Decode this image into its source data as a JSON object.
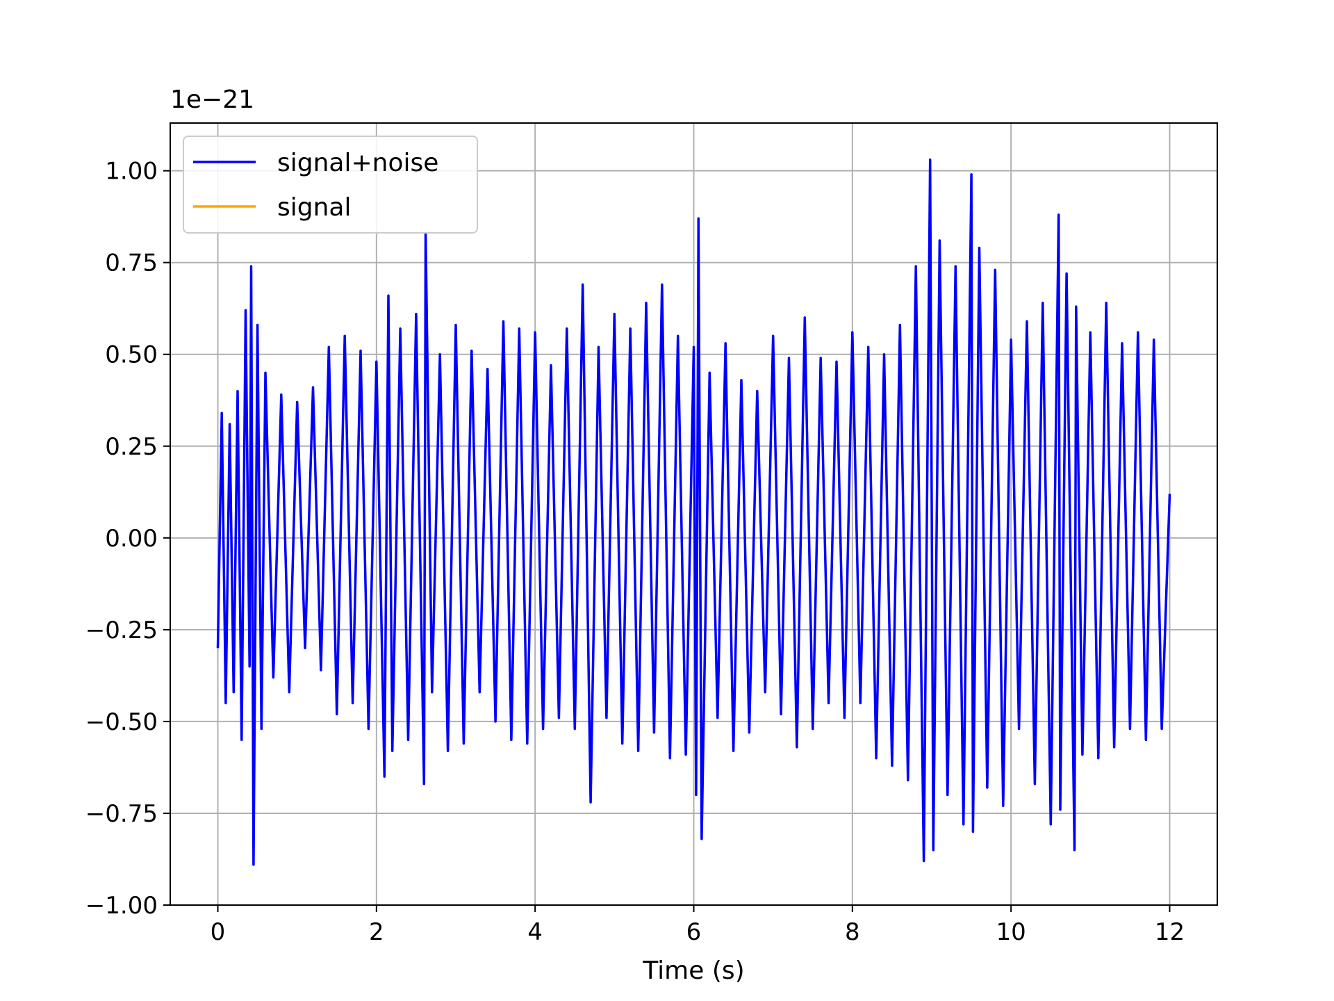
{
  "chart_data": {
    "type": "line",
    "title": "",
    "xlabel": "Time (s)",
    "ylabel": "",
    "y_offset_label": "1e−21",
    "xlim": [
      -0.6,
      12.6
    ],
    "ylim": [
      -1.0,
      1.13
    ],
    "x_ticks": [
      0,
      2,
      4,
      6,
      8,
      10,
      12
    ],
    "x_tick_labels": [
      "0",
      "2",
      "4",
      "6",
      "8",
      "10",
      "12"
    ],
    "y_ticks": [
      1.0,
      0.75,
      0.5,
      0.25,
      0.0,
      -0.25,
      -0.5,
      -0.75,
      -1.0
    ],
    "y_tick_labels": [
      "1.00",
      "0.75",
      "0.50",
      "0.25",
      "0.00",
      "−0.25",
      "−0.50",
      "−0.75",
      "−1.00"
    ],
    "grid": true,
    "legend_position": "upper-left",
    "series": [
      {
        "name": "signal+noise",
        "color": "#0000ff",
        "x": [
          0.0,
          0.05,
          0.1,
          0.15,
          0.2,
          0.25,
          0.3,
          0.35,
          0.4,
          0.42,
          0.45,
          0.5,
          0.55,
          0.6,
          0.7,
          0.8,
          0.9,
          1.0,
          1.1,
          1.2,
          1.3,
          1.4,
          1.5,
          1.6,
          1.7,
          1.8,
          1.9,
          2.0,
          2.1,
          2.15,
          2.2,
          2.3,
          2.4,
          2.5,
          2.6,
          2.62,
          2.7,
          2.8,
          2.9,
          3.0,
          3.1,
          3.2,
          3.3,
          3.4,
          3.5,
          3.6,
          3.7,
          3.8,
          3.9,
          4.0,
          4.1,
          4.2,
          4.3,
          4.4,
          4.5,
          4.6,
          4.7,
          4.8,
          4.9,
          5.0,
          5.1,
          5.2,
          5.3,
          5.4,
          5.5,
          5.6,
          5.7,
          5.8,
          5.9,
          6.0,
          6.03,
          6.06,
          6.1,
          6.2,
          6.3,
          6.4,
          6.5,
          6.6,
          6.7,
          6.8,
          6.9,
          7.0,
          7.1,
          7.2,
          7.3,
          7.4,
          7.5,
          7.6,
          7.7,
          7.8,
          7.9,
          8.0,
          8.1,
          8.2,
          8.3,
          8.4,
          8.5,
          8.6,
          8.7,
          8.8,
          8.9,
          8.98,
          9.02,
          9.1,
          9.2,
          9.3,
          9.4,
          9.5,
          9.52,
          9.6,
          9.7,
          9.8,
          9.9,
          10.0,
          10.1,
          10.2,
          10.3,
          10.4,
          10.5,
          10.6,
          10.62,
          10.7,
          10.8,
          10.82,
          10.9,
          11.0,
          11.1,
          11.2,
          11.3,
          11.4,
          11.5,
          11.6,
          11.7,
          11.8,
          11.9,
          12.0
        ],
        "y": [
          -0.3,
          0.34,
          -0.45,
          0.31,
          -0.42,
          0.4,
          -0.55,
          0.62,
          -0.35,
          0.74,
          -0.89,
          0.58,
          -0.52,
          0.45,
          -0.38,
          0.39,
          -0.42,
          0.37,
          -0.3,
          0.41,
          -0.36,
          0.52,
          -0.48,
          0.55,
          -0.45,
          0.51,
          -0.52,
          0.48,
          -0.65,
          0.66,
          -0.58,
          0.57,
          -0.55,
          0.61,
          -0.67,
          0.83,
          -0.42,
          0.5,
          -0.58,
          0.58,
          -0.56,
          0.51,
          -0.42,
          0.46,
          -0.5,
          0.59,
          -0.55,
          0.57,
          -0.56,
          0.56,
          -0.52,
          0.47,
          -0.49,
          0.57,
          -0.52,
          0.69,
          -0.72,
          0.52,
          -0.49,
          0.61,
          -0.56,
          0.57,
          -0.58,
          0.64,
          -0.53,
          0.69,
          -0.6,
          0.55,
          -0.59,
          0.52,
          -0.7,
          0.87,
          -0.82,
          0.45,
          -0.49,
          0.53,
          -0.58,
          0.43,
          -0.53,
          0.4,
          -0.42,
          0.55,
          -0.48,
          0.49,
          -0.57,
          0.6,
          -0.52,
          0.49,
          -0.45,
          0.48,
          -0.49,
          0.56,
          -0.45,
          0.52,
          -0.6,
          0.5,
          -0.62,
          0.58,
          -0.66,
          0.74,
          -0.88,
          1.03,
          -0.85,
          0.81,
          -0.7,
          0.74,
          -0.78,
          0.99,
          -0.8,
          0.79,
          -0.68,
          0.73,
          -0.73,
          0.54,
          -0.52,
          0.59,
          -0.67,
          0.64,
          -0.78,
          0.88,
          -0.74,
          0.72,
          -0.85,
          0.63,
          -0.59,
          0.56,
          -0.6,
          0.64,
          -0.57,
          0.53,
          -0.52,
          0.56,
          -0.55,
          0.54,
          -0.52,
          0.12
        ]
      },
      {
        "name": "signal",
        "color": "#ffa500",
        "x": [],
        "y": []
      }
    ]
  }
}
